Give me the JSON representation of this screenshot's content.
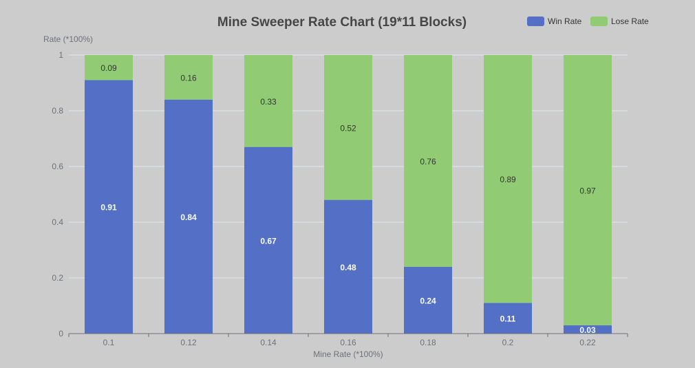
{
  "chart_data": {
    "type": "bar",
    "stacked": true,
    "title": "Mine Sweeper Rate Chart (19*11 Blocks)",
    "xlabel": "Mine Rate (*100%)",
    "ylabel": "Rate (*100%)",
    "categories": [
      "0.1",
      "0.12",
      "0.14",
      "0.16",
      "0.18",
      "0.2",
      "0.22"
    ],
    "ylim": [
      0,
      1
    ],
    "yticks": [
      "0",
      "0.2",
      "0.4",
      "0.6",
      "0.8",
      "1"
    ],
    "grid": true,
    "legend_position": "top-right",
    "series": [
      {
        "name": "Win Rate",
        "color": "#5470c6",
        "label_color": "#ffffff",
        "values": [
          0.91,
          0.84,
          0.67,
          0.48,
          0.24,
          0.11,
          0.03
        ]
      },
      {
        "name": "Lose Rate",
        "color": "#91cc75",
        "label_color": "#333333",
        "values": [
          0.09,
          0.16,
          0.33,
          0.52,
          0.76,
          0.89,
          0.97
        ]
      }
    ]
  },
  "colors": {
    "background": "#cccccc",
    "grid": "#e0e6f1",
    "axis": "#6e7079",
    "title": "#464646",
    "label": "#6e7079"
  }
}
